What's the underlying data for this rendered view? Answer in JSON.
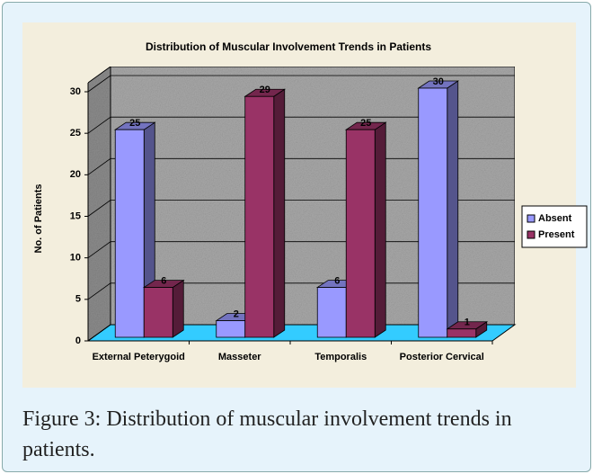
{
  "chart_data": {
    "type": "bar3d",
    "title": "Distribution of Muscular Involvement Trends in Patients",
    "ylabel": "No. of Patients",
    "categories": [
      "External Peterygoid",
      "Masseter",
      "Temporalis",
      "Posterior Cervical"
    ],
    "series": [
      {
        "name": "Absent",
        "color": "#9999ff",
        "values": [
          25,
          2,
          6,
          30
        ]
      },
      {
        "name": "Present",
        "color": "#993366",
        "values": [
          6,
          29,
          25,
          1
        ]
      }
    ],
    "ylim": [
      0,
      30
    ],
    "yticks": [
      0,
      5,
      10,
      15,
      20,
      25,
      30
    ],
    "grid": true,
    "legend": "right"
  },
  "caption": "Figure 3: Distribution of muscular involvement trends in patients."
}
